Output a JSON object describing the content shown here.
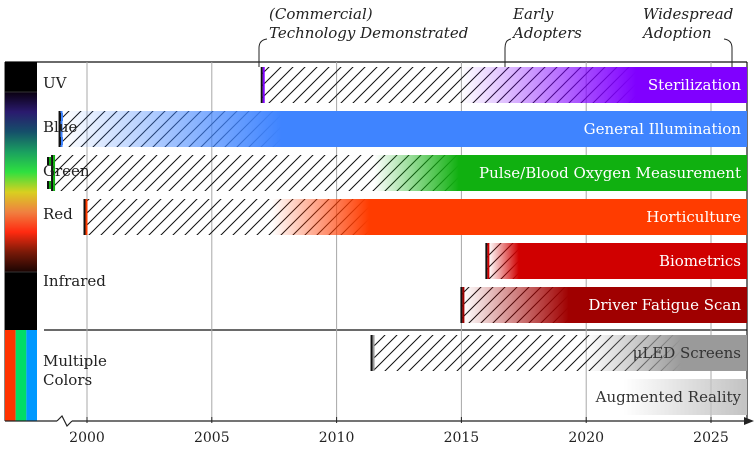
{
  "chart_data": {
    "type": "timeline",
    "title": "",
    "x_axis": {
      "range": [
        1998.9,
        2026.3
      ],
      "ticks": [
        2000,
        2005,
        2010,
        2015,
        2020,
        2025
      ],
      "tick_labels": [
        "2000",
        "2005",
        "2010",
        "2015",
        "2020",
        "2025"
      ],
      "axis_break_before": 2000,
      "grid": true
    },
    "stage_annotations": [
      {
        "label_lines": [
          "(Commercial)",
          "Technology Demonstrated"
        ],
        "year": 2007.0
      },
      {
        "label_lines": [
          "Early",
          "Adopters"
        ],
        "year": 2017.0
      },
      {
        "label_lines": [
          "Widespread",
          "Adoption"
        ],
        "year": 2025.7
      }
    ],
    "groups": [
      {
        "label_lines": [
          "UV"
        ],
        "spectrum": "uv",
        "rows": [
          0
        ]
      },
      {
        "label_lines": [
          "Blue"
        ],
        "spectrum": "blue",
        "rows": [
          1
        ]
      },
      {
        "label_lines": [
          "Green"
        ],
        "spectrum": "green",
        "rows": [
          2
        ]
      },
      {
        "label_lines": [
          "Red"
        ],
        "spectrum": "red",
        "rows": [
          3
        ]
      },
      {
        "label_lines": [
          "Infrared"
        ],
        "spectrum": "infrared",
        "rows": [
          4,
          5
        ]
      },
      {
        "label_lines": [
          "Multiple",
          "Colors"
        ],
        "spectrum": "multi",
        "rows": [
          6,
          7
        ]
      }
    ],
    "spectrum_colors": {
      "uv": [
        "#000000",
        "#000000"
      ],
      "visible": [
        "#0a0010",
        "#2a1a6e",
        "#15506a",
        "#1aa060",
        "#2ee040",
        "#d8d020",
        "#f08040",
        "#ff2a10",
        "#7a1a08",
        "#1a0402"
      ],
      "infrared": [
        "#000000",
        "#000000"
      ],
      "multi": [
        "#ff3300",
        "#00dd66",
        "#0099ff"
      ]
    },
    "series": [
      {
        "name": "Sterilization",
        "color": "#8000ff",
        "demonstrated": 2007.0,
        "fade_start": 2015.0,
        "adoption": 2022.0,
        "end": 2026.3,
        "text_color": "light"
      },
      {
        "name": "General Illumination",
        "color": "#3f84ff",
        "demonstrated": 1998.9,
        "fade_start": 1999.0,
        "adoption": 2007.8,
        "end": 2026.3,
        "text_color": "light"
      },
      {
        "name": "Pulse/Blood Oxygen Measurement",
        "color": "#10b010",
        "demonstrated": 1998.6,
        "fade_start": 2011.5,
        "adoption": 2014.9,
        "end": 2026.3,
        "text_color": "light"
      },
      {
        "name": "Horticulture",
        "color": "#ff3c00",
        "demonstrated": 1999.9,
        "fade_start": 2007.4,
        "adoption": 2011.3,
        "end": 2026.3,
        "text_color": "light"
      },
      {
        "name": "Biometrics",
        "color": "#d00000",
        "demonstrated": 2016.0,
        "fade_start": 2016.1,
        "adoption": 2017.3,
        "end": 2026.3,
        "text_color": "light"
      },
      {
        "name": "Driver Fatigue Scan",
        "color": "#a00000",
        "demonstrated": 2015.0,
        "fade_start": 2015.1,
        "adoption": 2019.3,
        "end": 2026.3,
        "text_color": "light"
      },
      {
        "name": "μLED Screens",
        "color": "#9a9a9a",
        "demonstrated": 2011.4,
        "fade_start": 2020.0,
        "adoption": 2023.8,
        "end": 2026.3,
        "text_color": "dark"
      },
      {
        "name": "Augmented Reality",
        "color": "#c4c4c4",
        "demonstrated": null,
        "fade_start": 2021.5,
        "adoption": 2026.3,
        "end": 2026.3,
        "text_color": "dark"
      }
    ]
  }
}
